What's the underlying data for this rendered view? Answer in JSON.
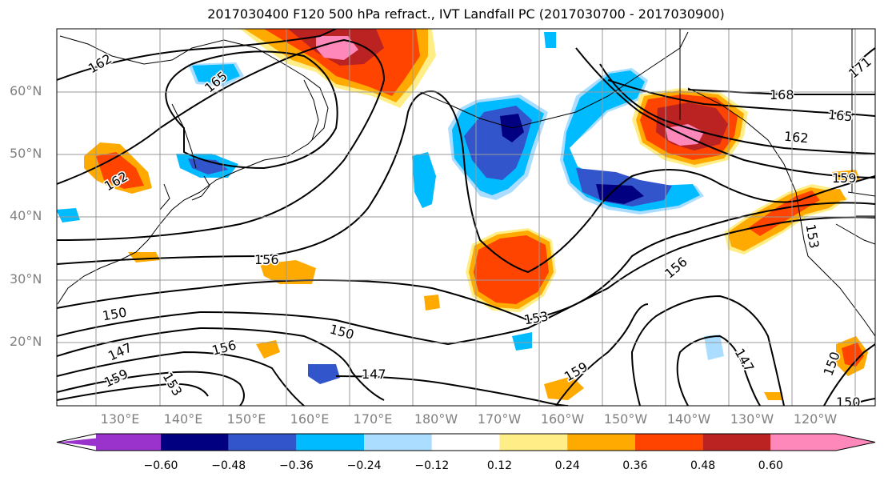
{
  "title": "2017030400 F120 500 hPa refract., IVT Landfall PC (2017030700 - 2017030900)",
  "lat_labels": [
    "60°N",
    "50°N",
    "40°N",
    "30°N",
    "20°N"
  ],
  "lon_labels": [
    "130°E",
    "140°E",
    "150°E",
    "160°E",
    "170°E",
    "180°W",
    "170°W",
    "160°W",
    "150°W",
    "140°W",
    "130°W",
    "120°W"
  ],
  "contour_labels": [
    "162",
    "165",
    "162",
    "168",
    "165",
    "162",
    "159",
    "156",
    "156",
    "150",
    "147",
    "159",
    "153",
    "156",
    "150",
    "147",
    "153",
    "159",
    "147",
    "150",
    "150",
    "153",
    "171"
  ],
  "colorbar": {
    "colors": [
      "#9933cc",
      "#000080",
      "#3355cc",
      "#00bbff",
      "#aaddff",
      "#ffffff",
      "#ffee88",
      "#ffaa00",
      "#ff4400",
      "#bb2222",
      "#ff88bb"
    ],
    "tick_labels": [
      "−0.60",
      "−0.48",
      "−0.36",
      "−0.24",
      "−0.12",
      "0.12",
      "0.24",
      "0.36",
      "0.48",
      "0.60"
    ]
  }
}
